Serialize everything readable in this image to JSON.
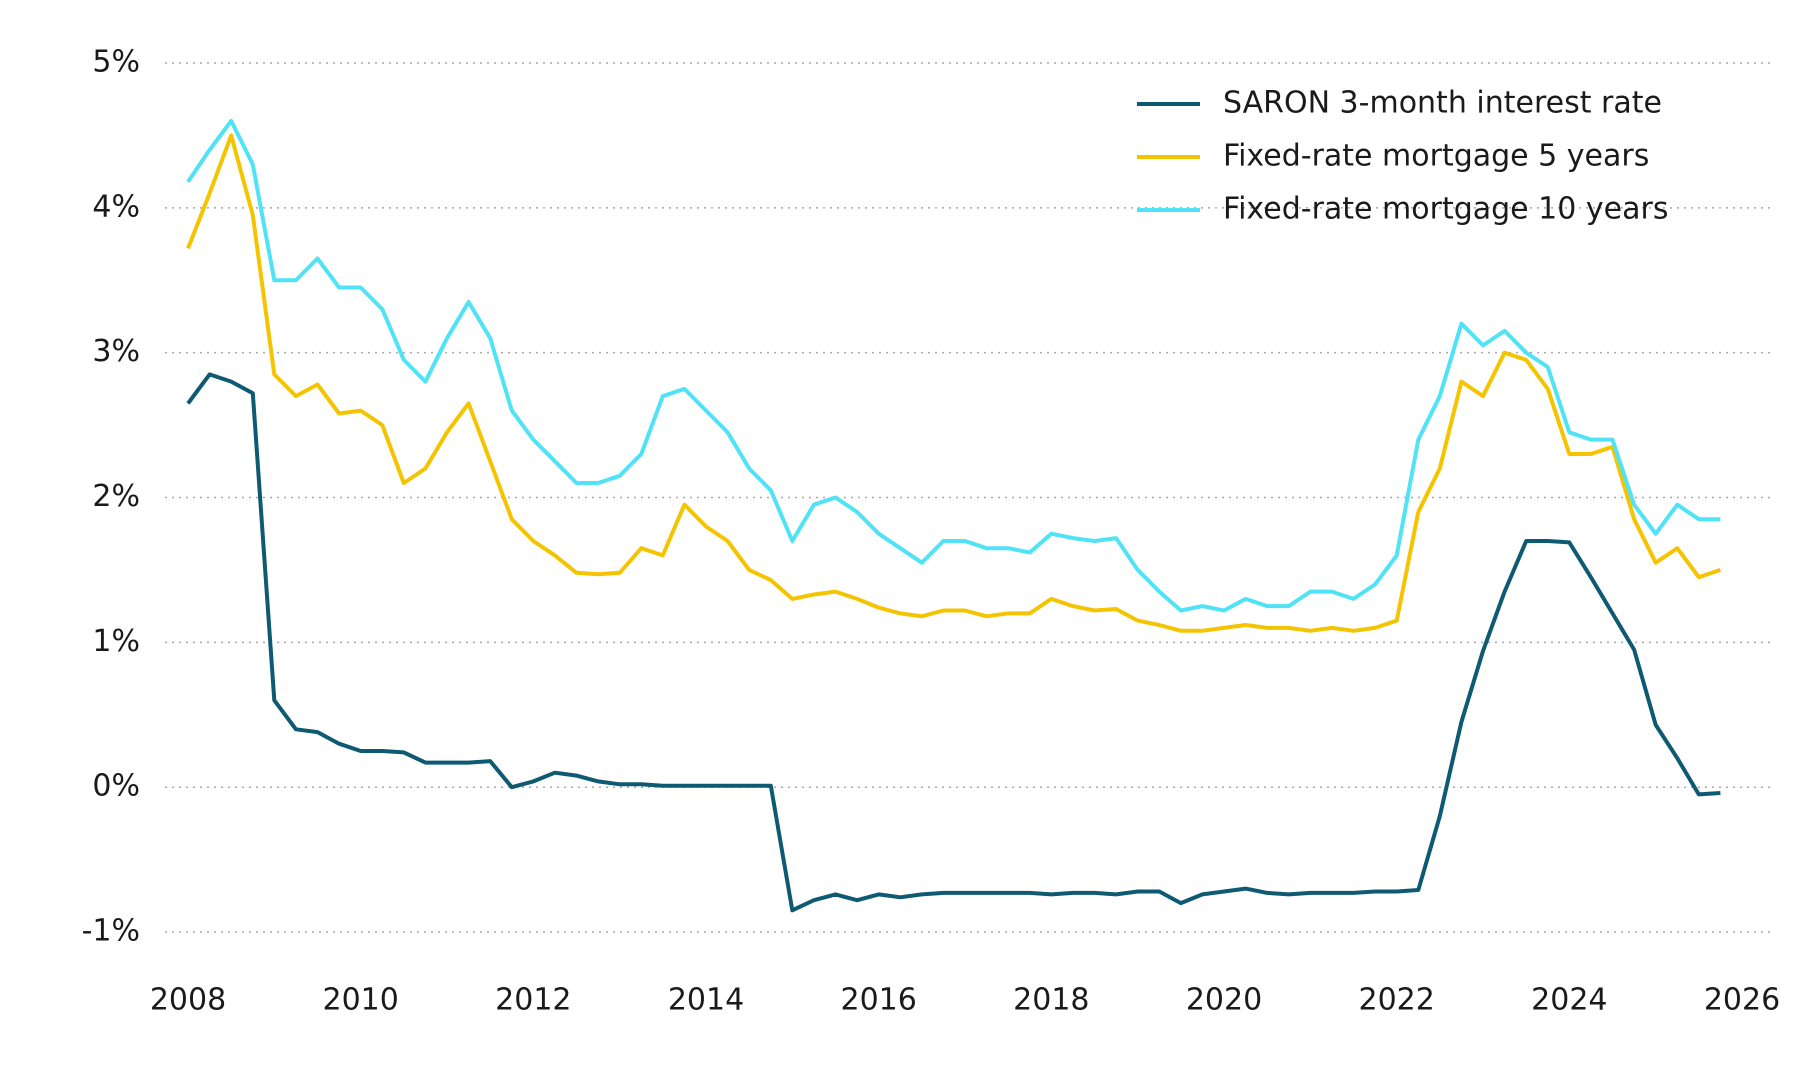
{
  "chart_data": {
    "type": "line",
    "x": [
      2008,
      2008.25,
      2008.5,
      2008.75,
      2009,
      2009.25,
      2009.5,
      2009.75,
      2010,
      2010.25,
      2010.5,
      2010.75,
      2011,
      2011.25,
      2011.5,
      2011.75,
      2012,
      2012.25,
      2012.5,
      2012.75,
      2013,
      2013.25,
      2013.5,
      2013.75,
      2014,
      2014.25,
      2014.5,
      2014.75,
      2015,
      2015.25,
      2015.5,
      2015.75,
      2016,
      2016.25,
      2016.5,
      2016.75,
      2017,
      2017.25,
      2017.5,
      2017.75,
      2018,
      2018.25,
      2018.5,
      2018.75,
      2019,
      2019.25,
      2019.5,
      2019.75,
      2020,
      2020.25,
      2020.5,
      2020.75,
      2021,
      2021.25,
      2021.5,
      2021.75,
      2022,
      2022.25,
      2022.5,
      2022.75,
      2023,
      2023.25,
      2023.5,
      2023.75,
      2024,
      2024.25,
      2024.5,
      2024.75,
      2025,
      2025.25,
      2025.5,
      2025.75
    ],
    "series": [
      {
        "name": "SARON 3-month interest rate",
        "color": "#0f5a73",
        "values": [
          2.65,
          2.85,
          2.8,
          2.72,
          0.6,
          0.4,
          0.38,
          0.3,
          0.25,
          0.25,
          0.24,
          0.17,
          0.17,
          0.17,
          0.18,
          0.0,
          0.04,
          0.1,
          0.08,
          0.04,
          0.02,
          0.02,
          0.01,
          0.01,
          0.01,
          0.01,
          0.01,
          0.01,
          -0.85,
          -0.78,
          -0.74,
          -0.78,
          -0.74,
          -0.76,
          -0.74,
          -0.73,
          -0.73,
          -0.73,
          -0.73,
          -0.73,
          -0.74,
          -0.73,
          -0.73,
          -0.74,
          -0.72,
          -0.72,
          -0.8,
          -0.74,
          -0.72,
          -0.7,
          -0.73,
          -0.74,
          -0.73,
          -0.73,
          -0.73,
          -0.72,
          -0.72,
          -0.71,
          -0.2,
          0.45,
          0.94,
          1.35,
          1.7,
          1.7,
          1.69,
          1.45,
          1.2,
          0.95,
          0.43,
          0.2,
          -0.05,
          -0.04
        ]
      },
      {
        "name": "Fixed-rate mortgage 5 years",
        "color": "#f5c400",
        "values": [
          3.72,
          4.1,
          4.5,
          3.95,
          2.85,
          2.7,
          2.78,
          2.58,
          2.6,
          2.5,
          2.1,
          2.2,
          2.45,
          2.65,
          2.25,
          1.85,
          1.7,
          1.6,
          1.48,
          1.47,
          1.48,
          1.65,
          1.6,
          1.95,
          1.8,
          1.7,
          1.5,
          1.43,
          1.3,
          1.33,
          1.35,
          1.3,
          1.24,
          1.2,
          1.18,
          1.22,
          1.22,
          1.18,
          1.2,
          1.2,
          1.3,
          1.25,
          1.22,
          1.23,
          1.15,
          1.12,
          1.08,
          1.08,
          1.1,
          1.12,
          1.1,
          1.1,
          1.08,
          1.1,
          1.08,
          1.1,
          1.15,
          1.9,
          2.2,
          2.8,
          2.7,
          3.0,
          2.95,
          2.75,
          2.3,
          2.3,
          2.35,
          1.85,
          1.55,
          1.65,
          1.45,
          1.5
        ]
      },
      {
        "name": "Fixed-rate mortgage 10 years",
        "color": "#4fe3f5",
        "values": [
          4.18,
          4.4,
          4.6,
          4.3,
          3.5,
          3.5,
          3.65,
          3.45,
          3.45,
          3.3,
          2.95,
          2.8,
          3.1,
          3.35,
          3.1,
          2.6,
          2.4,
          2.25,
          2.1,
          2.1,
          2.15,
          2.3,
          2.7,
          2.75,
          2.6,
          2.45,
          2.2,
          2.05,
          1.7,
          1.95,
          2.0,
          1.9,
          1.75,
          1.65,
          1.55,
          1.7,
          1.7,
          1.65,
          1.65,
          1.62,
          1.75,
          1.72,
          1.7,
          1.72,
          1.5,
          1.35,
          1.22,
          1.25,
          1.22,
          1.3,
          1.25,
          1.25,
          1.35,
          1.35,
          1.3,
          1.4,
          1.6,
          2.4,
          2.7,
          3.2,
          3.05,
          3.15,
          3.0,
          2.9,
          2.45,
          2.4,
          2.4,
          1.95,
          1.75,
          1.95,
          1.85,
          1.85
        ]
      }
    ],
    "xlim": [
      2008,
      2026
    ],
    "xticks": [
      2008,
      2010,
      2012,
      2014,
      2016,
      2018,
      2020,
      2022,
      2024,
      2026
    ],
    "ylim": [
      -1.2,
      5.2
    ],
    "yticks": [
      {
        "value": -1,
        "label": "-1%"
      },
      {
        "value": 0,
        "label": "0%"
      },
      {
        "value": 1,
        "label": "1%"
      },
      {
        "value": 2,
        "label": "2%"
      },
      {
        "value": 3,
        "label": "3%"
      },
      {
        "value": 4,
        "label": "4%"
      },
      {
        "value": 5,
        "label": "5%"
      }
    ],
    "grid": true,
    "legend": "upper right"
  }
}
